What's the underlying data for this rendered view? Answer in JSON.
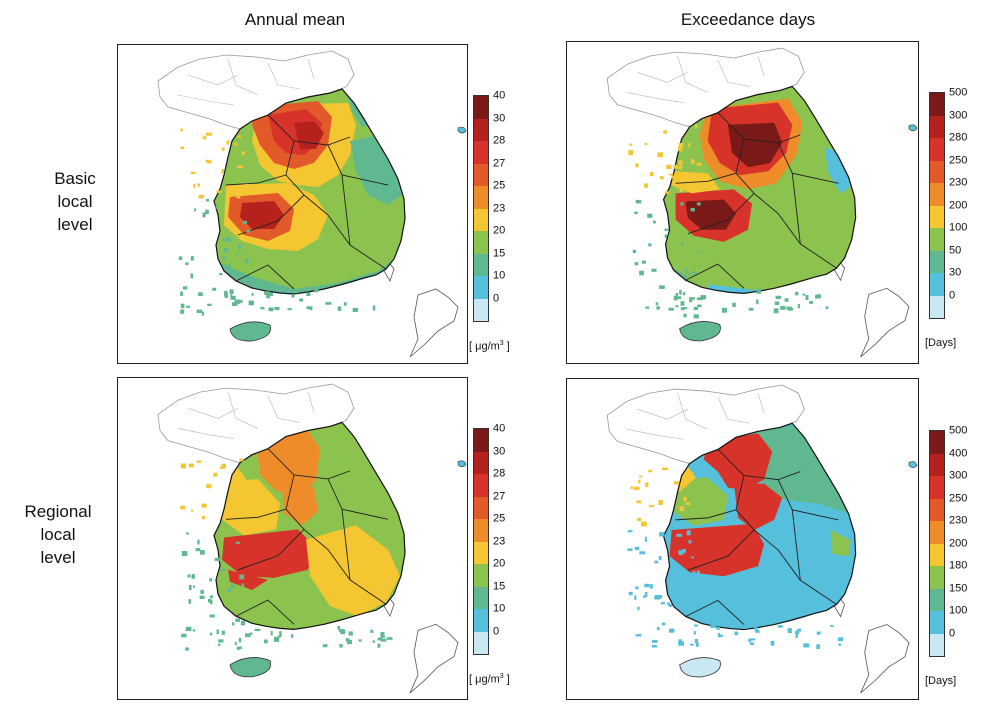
{
  "column_titles": [
    "Annual mean",
    "Exceedance days"
  ],
  "row_labels": [
    [
      "Basic",
      "local",
      "level"
    ],
    [
      "Regional",
      "local",
      "level"
    ]
  ],
  "legends": {
    "pm_mean": {
      "ticks": [
        "40",
        "30",
        "28",
        "27",
        "25",
        "23",
        "20",
        "15",
        "10",
        "0"
      ],
      "colors": [
        "#7a1a18",
        "#b5211c",
        "#d8332a",
        "#e25a2a",
        "#ef8c2a",
        "#f4c632",
        "#8cc34e",
        "#5fb890",
        "#56bfdc",
        "#c8e8f2"
      ],
      "unit": "[ μg/m",
      "unit_sup": "3",
      "unit_end": " ]"
    },
    "days_top": {
      "ticks": [
        "500",
        "300",
        "280",
        "250",
        "230",
        "200",
        "100",
        "50",
        "30",
        "0"
      ],
      "colors": [
        "#7a1a18",
        "#b5211c",
        "#d8332a",
        "#e25a2a",
        "#ef8c2a",
        "#f4c632",
        "#8cc34e",
        "#5fb890",
        "#56bfdc",
        "#c8e8f2"
      ],
      "unit": "[Days]"
    },
    "days_bottom": {
      "ticks": [
        "500",
        "400",
        "300",
        "250",
        "230",
        "200",
        "180",
        "150",
        "100",
        "0"
      ],
      "colors": [
        "#7a1a18",
        "#b5211c",
        "#d8332a",
        "#e25a2a",
        "#ef8c2a",
        "#f4c632",
        "#8cc34e",
        "#5fb890",
        "#56bfdc",
        "#c8e8f2"
      ],
      "unit": "[Days]"
    }
  },
  "panels": [
    {
      "name": "basic-annual-mean",
      "scheme": "basic-mean"
    },
    {
      "name": "basic-exceedance-days",
      "scheme": "basic-days"
    },
    {
      "name": "regional-annual-mean",
      "scheme": "regional-mean"
    },
    {
      "name": "regional-exceedance-days",
      "scheme": "regional-days"
    }
  ]
}
